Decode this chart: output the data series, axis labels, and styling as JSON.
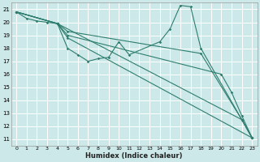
{
  "xlabel": "Humidex (Indice chaleur)",
  "bg_color": "#cce8e8",
  "grid_color": "#ffffff",
  "line_color": "#2e7d6e",
  "xlim": [
    -0.5,
    23.5
  ],
  "ylim": [
    10.5,
    21.5
  ],
  "yticks": [
    11,
    12,
    13,
    14,
    15,
    16,
    17,
    18,
    19,
    20,
    21
  ],
  "xticks": [
    0,
    1,
    2,
    3,
    4,
    5,
    6,
    7,
    8,
    9,
    10,
    11,
    12,
    13,
    14,
    15,
    16,
    17,
    18,
    19,
    20,
    21,
    22,
    23
  ],
  "series": [
    {
      "x": [
        0,
        1,
        2,
        3,
        4,
        22,
        23
      ],
      "y": [
        20.8,
        20.3,
        20.1,
        20.0,
        19.9,
        12.5,
        11.1
      ]
    },
    {
      "x": [
        0,
        4,
        5,
        6,
        7,
        8,
        9,
        10,
        11,
        14,
        15,
        16,
        17,
        18,
        22,
        23
      ],
      "y": [
        20.8,
        19.9,
        18.0,
        17.5,
        17.0,
        17.2,
        17.3,
        18.5,
        17.5,
        18.5,
        19.5,
        21.3,
        21.2,
        18.0,
        12.5,
        11.1
      ]
    },
    {
      "comment": "line that goes from 0,20.8 to 5,19.3 to 18,17.6 ending 23,11.1",
      "x": [
        0,
        4,
        5,
        18,
        22,
        23
      ],
      "y": [
        20.8,
        19.9,
        19.3,
        17.6,
        12.5,
        11.1
      ]
    },
    {
      "x": [
        0,
        4,
        5,
        20,
        21,
        22,
        23
      ],
      "y": [
        20.8,
        19.9,
        19.0,
        16.0,
        14.6,
        12.8,
        11.1
      ]
    },
    {
      "x": [
        0,
        4,
        5,
        23
      ],
      "y": [
        20.8,
        19.9,
        18.8,
        11.1
      ]
    }
  ]
}
